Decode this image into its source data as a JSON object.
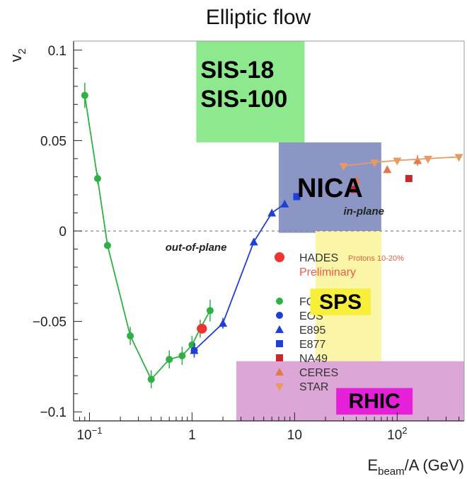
{
  "chart_data": {
    "type": "scatter",
    "title": "Elliptic flow",
    "xlabel": "E_beam/A (GeV)",
    "ylabel": "v2",
    "xscale": "log",
    "xlim": [
      0.07,
      450
    ],
    "ylim": [
      -0.105,
      0.105
    ],
    "grid": false,
    "zero_line": "dashed",
    "x_ticks": [
      {
        "value": 0.1,
        "base": "10",
        "exp": "−1"
      },
      {
        "value": 1,
        "label": "1"
      },
      {
        "value": 10,
        "label": "10"
      },
      {
        "value": 100,
        "base": "10",
        "exp": "2"
      }
    ],
    "y_ticks": [
      {
        "value": 0.1,
        "label": "0.1"
      },
      {
        "value": 0.05,
        "label": "0.05"
      },
      {
        "value": 0,
        "label": "0"
      },
      {
        "value": -0.05,
        "label": "−0.05"
      },
      {
        "value": -0.1,
        "label": "−0.1"
      }
    ],
    "regions": [
      {
        "label": "SIS-18\nSIS-100",
        "x": [
          1.1,
          12.5
        ],
        "y": [
          0.049,
          0.105
        ],
        "color": "#8ee88e"
      },
      {
        "label": "NICA",
        "x": [
          7,
          70
        ],
        "y": [
          -0.001,
          0.049
        ],
        "color": "#8c96c4"
      },
      {
        "label": "SPS",
        "x": [
          16,
          70
        ],
        "y": [
          -0.072,
          0.0
        ],
        "color": "#fbf5a8"
      },
      {
        "label": "RHIC",
        "x": [
          2.7,
          450
        ],
        "y": [
          -0.105,
          -0.072
        ],
        "color": "#dca6d6"
      }
    ],
    "annotations": [
      {
        "text": "out-of-plane",
        "x": 0.55,
        "y": -0.011
      },
      {
        "text": "in-plane",
        "x": 30,
        "y": 0.009
      }
    ],
    "series": [
      {
        "name": "FOPI",
        "marker": "circle",
        "color": "#2eb042",
        "connect": true,
        "points": [
          {
            "x": 0.09,
            "y": 0.075,
            "err": 0.007
          },
          {
            "x": 0.12,
            "y": 0.029,
            "err": 0.003
          },
          {
            "x": 0.15,
            "y": -0.008,
            "err": 0.002
          },
          {
            "x": 0.25,
            "y": -0.058,
            "err": 0.005
          },
          {
            "x": 0.4,
            "y": -0.082,
            "err": 0.005
          },
          {
            "x": 0.6,
            "y": -0.071,
            "err": 0.005
          },
          {
            "x": 0.8,
            "y": -0.069,
            "err": 0.005
          },
          {
            "x": 1.0,
            "y": -0.063,
            "err": 0.005
          },
          {
            "x": 1.2,
            "y": -0.054,
            "err": 0.005
          },
          {
            "x": 1.5,
            "y": -0.044,
            "err": 0.006
          }
        ]
      },
      {
        "name": "EOS",
        "marker": "circle",
        "color": "#1f3fd6",
        "connect": false,
        "points": [
          {
            "x": 1.05,
            "y": -0.066,
            "err": 0.004
          }
        ]
      },
      {
        "name": "E895",
        "marker": "triangle",
        "color": "#1f3fd6",
        "connect": true,
        "points": [
          {
            "x": 1.05,
            "y": -0.066,
            "err": 0.0
          },
          {
            "x": 2,
            "y": -0.051,
            "err": 0.003
          },
          {
            "x": 4,
            "y": -0.006,
            "err": 0.002
          },
          {
            "x": 6,
            "y": 0.01,
            "err": 0.002
          },
          {
            "x": 8,
            "y": 0.015,
            "err": 0.001
          }
        ]
      },
      {
        "name": "E877",
        "marker": "square",
        "color": "#1f3fd6",
        "connect": true,
        "points": [
          {
            "x": 10.5,
            "y": 0.019,
            "err": 0.001
          }
        ]
      },
      {
        "name": "NA49",
        "marker": "square",
        "color": "#c8282c",
        "connect": false,
        "points": [
          {
            "x": 38,
            "y": 0.023,
            "err": 0.002
          },
          {
            "x": 130,
            "y": 0.029,
            "err": 0.001
          }
        ]
      },
      {
        "name": "CERES",
        "marker": "triangle",
        "color": "#e4784a",
        "connect": false,
        "points": [
          {
            "x": 40,
            "y": 0.028,
            "err": 0.003
          },
          {
            "x": 80,
            "y": 0.034,
            "err": 0.002
          },
          {
            "x": 158,
            "y": 0.039,
            "err": 0.003
          }
        ]
      },
      {
        "name": "STAR",
        "marker": "star",
        "color": "#e89a60",
        "connect": true,
        "points": [
          {
            "x": 30,
            "y": 0.036,
            "err": 0.001
          },
          {
            "x": 60,
            "y": 0.038,
            "err": 0.001
          },
          {
            "x": 100,
            "y": 0.039,
            "err": 0.001
          },
          {
            "x": 200,
            "y": 0.04,
            "err": 0.001
          },
          {
            "x": 400,
            "y": 0.041,
            "err": 0.001
          }
        ]
      },
      {
        "name": "HADES",
        "marker": "circle-large",
        "color": "#ee3333",
        "connect": false,
        "points": [
          {
            "x": 1.25,
            "y": -0.054,
            "err": 0.0
          }
        ]
      }
    ],
    "legend": {
      "placement": "center-right",
      "entries": [
        {
          "series": "HADES",
          "label": "HADES",
          "note": "Protons 10-20%",
          "sub": "Preliminary"
        },
        {
          "series": "FOPI",
          "label": "FOPI"
        },
        {
          "series": "EOS",
          "label": "EOS"
        },
        {
          "series": "E895",
          "label": "E895"
        },
        {
          "series": "E877",
          "label": "E877"
        },
        {
          "series": "NA49",
          "label": "NA49"
        },
        {
          "series": "CERES",
          "label": "CERES"
        },
        {
          "series": "STAR",
          "label": "STAR"
        }
      ]
    }
  }
}
